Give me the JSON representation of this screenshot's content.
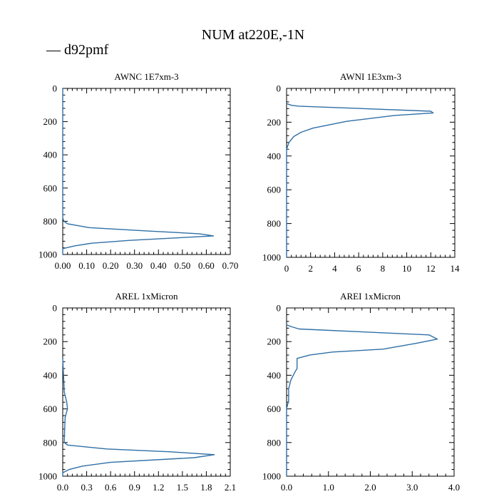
{
  "title": "NUM at220E,-1N",
  "legend": {
    "label": "d92pmf",
    "marker": "—"
  },
  "colors": {
    "series": "#2f6fa6",
    "legend_text": "#2f6fa6",
    "axis": "#000000"
  },
  "chart_data": [
    {
      "type": "line",
      "title": "AWNC  1E7xm-3",
      "series_name": "d92pmf",
      "xlim": [
        0.0,
        0.7
      ],
      "ylim": [
        0,
        1000
      ],
      "y_inverted": true,
      "xticks": [
        0.0,
        0.1,
        0.2,
        0.3,
        0.4,
        0.5,
        0.6,
        0.7
      ],
      "xtick_labels": [
        "0.00",
        "0.10",
        "0.20",
        "0.30",
        "0.40",
        "0.50",
        "0.60",
        "0.70"
      ],
      "yticks": [
        0,
        200,
        400,
        600,
        800,
        1000
      ],
      "ytick_labels": [
        "0",
        "200",
        "400",
        "600",
        "800",
        "1000"
      ],
      "points": [
        [
          0.0,
          0
        ],
        [
          0.0,
          780
        ],
        [
          0.005,
          800
        ],
        [
          0.02,
          815
        ],
        [
          0.11,
          838
        ],
        [
          0.35,
          858
        ],
        [
          0.57,
          875
        ],
        [
          0.63,
          888
        ],
        [
          0.28,
          915
        ],
        [
          0.12,
          932
        ],
        [
          0.05,
          948
        ],
        [
          0.0,
          965
        ],
        [
          0.0,
          1000
        ]
      ]
    },
    {
      "type": "line",
      "title": "AWNI  1E3xm-3",
      "series_name": "d92pmf",
      "xlim": [
        0,
        14
      ],
      "ylim": [
        0,
        1000
      ],
      "y_inverted": true,
      "xticks": [
        0,
        2,
        4,
        6,
        8,
        10,
        12,
        14
      ],
      "xtick_labels": [
        "0",
        "2",
        "4",
        "6",
        "8",
        "10",
        "12",
        "14"
      ],
      "yticks": [
        0,
        200,
        400,
        600,
        800,
        1000
      ],
      "ytick_labels": [
        "0",
        "200",
        "400",
        "600",
        "800",
        "1000"
      ],
      "points": [
        [
          0.0,
          90
        ],
        [
          0.4,
          100
        ],
        [
          1.0,
          105
        ],
        [
          12.0,
          135
        ],
        [
          12.2,
          145
        ],
        [
          9.0,
          160
        ],
        [
          5.0,
          195
        ],
        [
          2.2,
          235
        ],
        [
          1.2,
          260
        ],
        [
          0.6,
          285
        ],
        [
          0.2,
          320
        ],
        [
          0.0,
          360
        ],
        [
          0.0,
          1000
        ]
      ]
    },
    {
      "type": "line",
      "title": "AREL  1xMicron",
      "series_name": "d92pmf",
      "xlim": [
        0.0,
        2.1
      ],
      "ylim": [
        0,
        1000
      ],
      "y_inverted": true,
      "xticks": [
        0.0,
        0.3,
        0.6,
        0.9,
        1.2,
        1.5,
        1.8,
        2.1
      ],
      "xtick_labels": [
        "0.0",
        "0.3",
        "0.6",
        "0.9",
        "1.2",
        "1.5",
        "1.8",
        "2.1"
      ],
      "yticks": [
        0,
        200,
        400,
        600,
        800,
        1000
      ],
      "ytick_labels": [
        "0",
        "200",
        "400",
        "600",
        "800",
        "1000"
      ],
      "points": [
        [
          0.0,
          300
        ],
        [
          0.02,
          500
        ],
        [
          0.05,
          560
        ],
        [
          0.06,
          600
        ],
        [
          0.03,
          650
        ],
        [
          0.02,
          780
        ],
        [
          0.02,
          800
        ],
        [
          0.06,
          815
        ],
        [
          0.55,
          838
        ],
        [
          1.35,
          855
        ],
        [
          1.9,
          872
        ],
        [
          1.65,
          890
        ],
        [
          0.6,
          918
        ],
        [
          0.25,
          940
        ],
        [
          0.08,
          960
        ],
        [
          0.0,
          980
        ],
        [
          0.0,
          1000
        ]
      ]
    },
    {
      "type": "line",
      "title": "AREI  1xMicron",
      "series_name": "d92pmf",
      "xlim": [
        0.0,
        4.0
      ],
      "ylim": [
        0,
        1000
      ],
      "y_inverted": true,
      "xticks": [
        0.0,
        1.0,
        2.0,
        3.0,
        4.0
      ],
      "xtick_labels": [
        "0.0",
        "1.0",
        "2.0",
        "3.0",
        "4.0"
      ],
      "yticks": [
        0,
        200,
        400,
        600,
        800,
        1000
      ],
      "ytick_labels": [
        "0",
        "200",
        "400",
        "600",
        "800",
        "1000"
      ],
      "points": [
        [
          0.0,
          100
        ],
        [
          0.1,
          110
        ],
        [
          0.3,
          125
        ],
        [
          3.4,
          160
        ],
        [
          3.6,
          185
        ],
        [
          3.1,
          210
        ],
        [
          2.3,
          245
        ],
        [
          1.1,
          262
        ],
        [
          0.55,
          280
        ],
        [
          0.25,
          300
        ],
        [
          0.25,
          360
        ],
        [
          0.2,
          380
        ],
        [
          0.1,
          430
        ],
        [
          0.05,
          480
        ],
        [
          0.05,
          550
        ],
        [
          0.0,
          600
        ],
        [
          0.0,
          1000
        ]
      ]
    }
  ]
}
